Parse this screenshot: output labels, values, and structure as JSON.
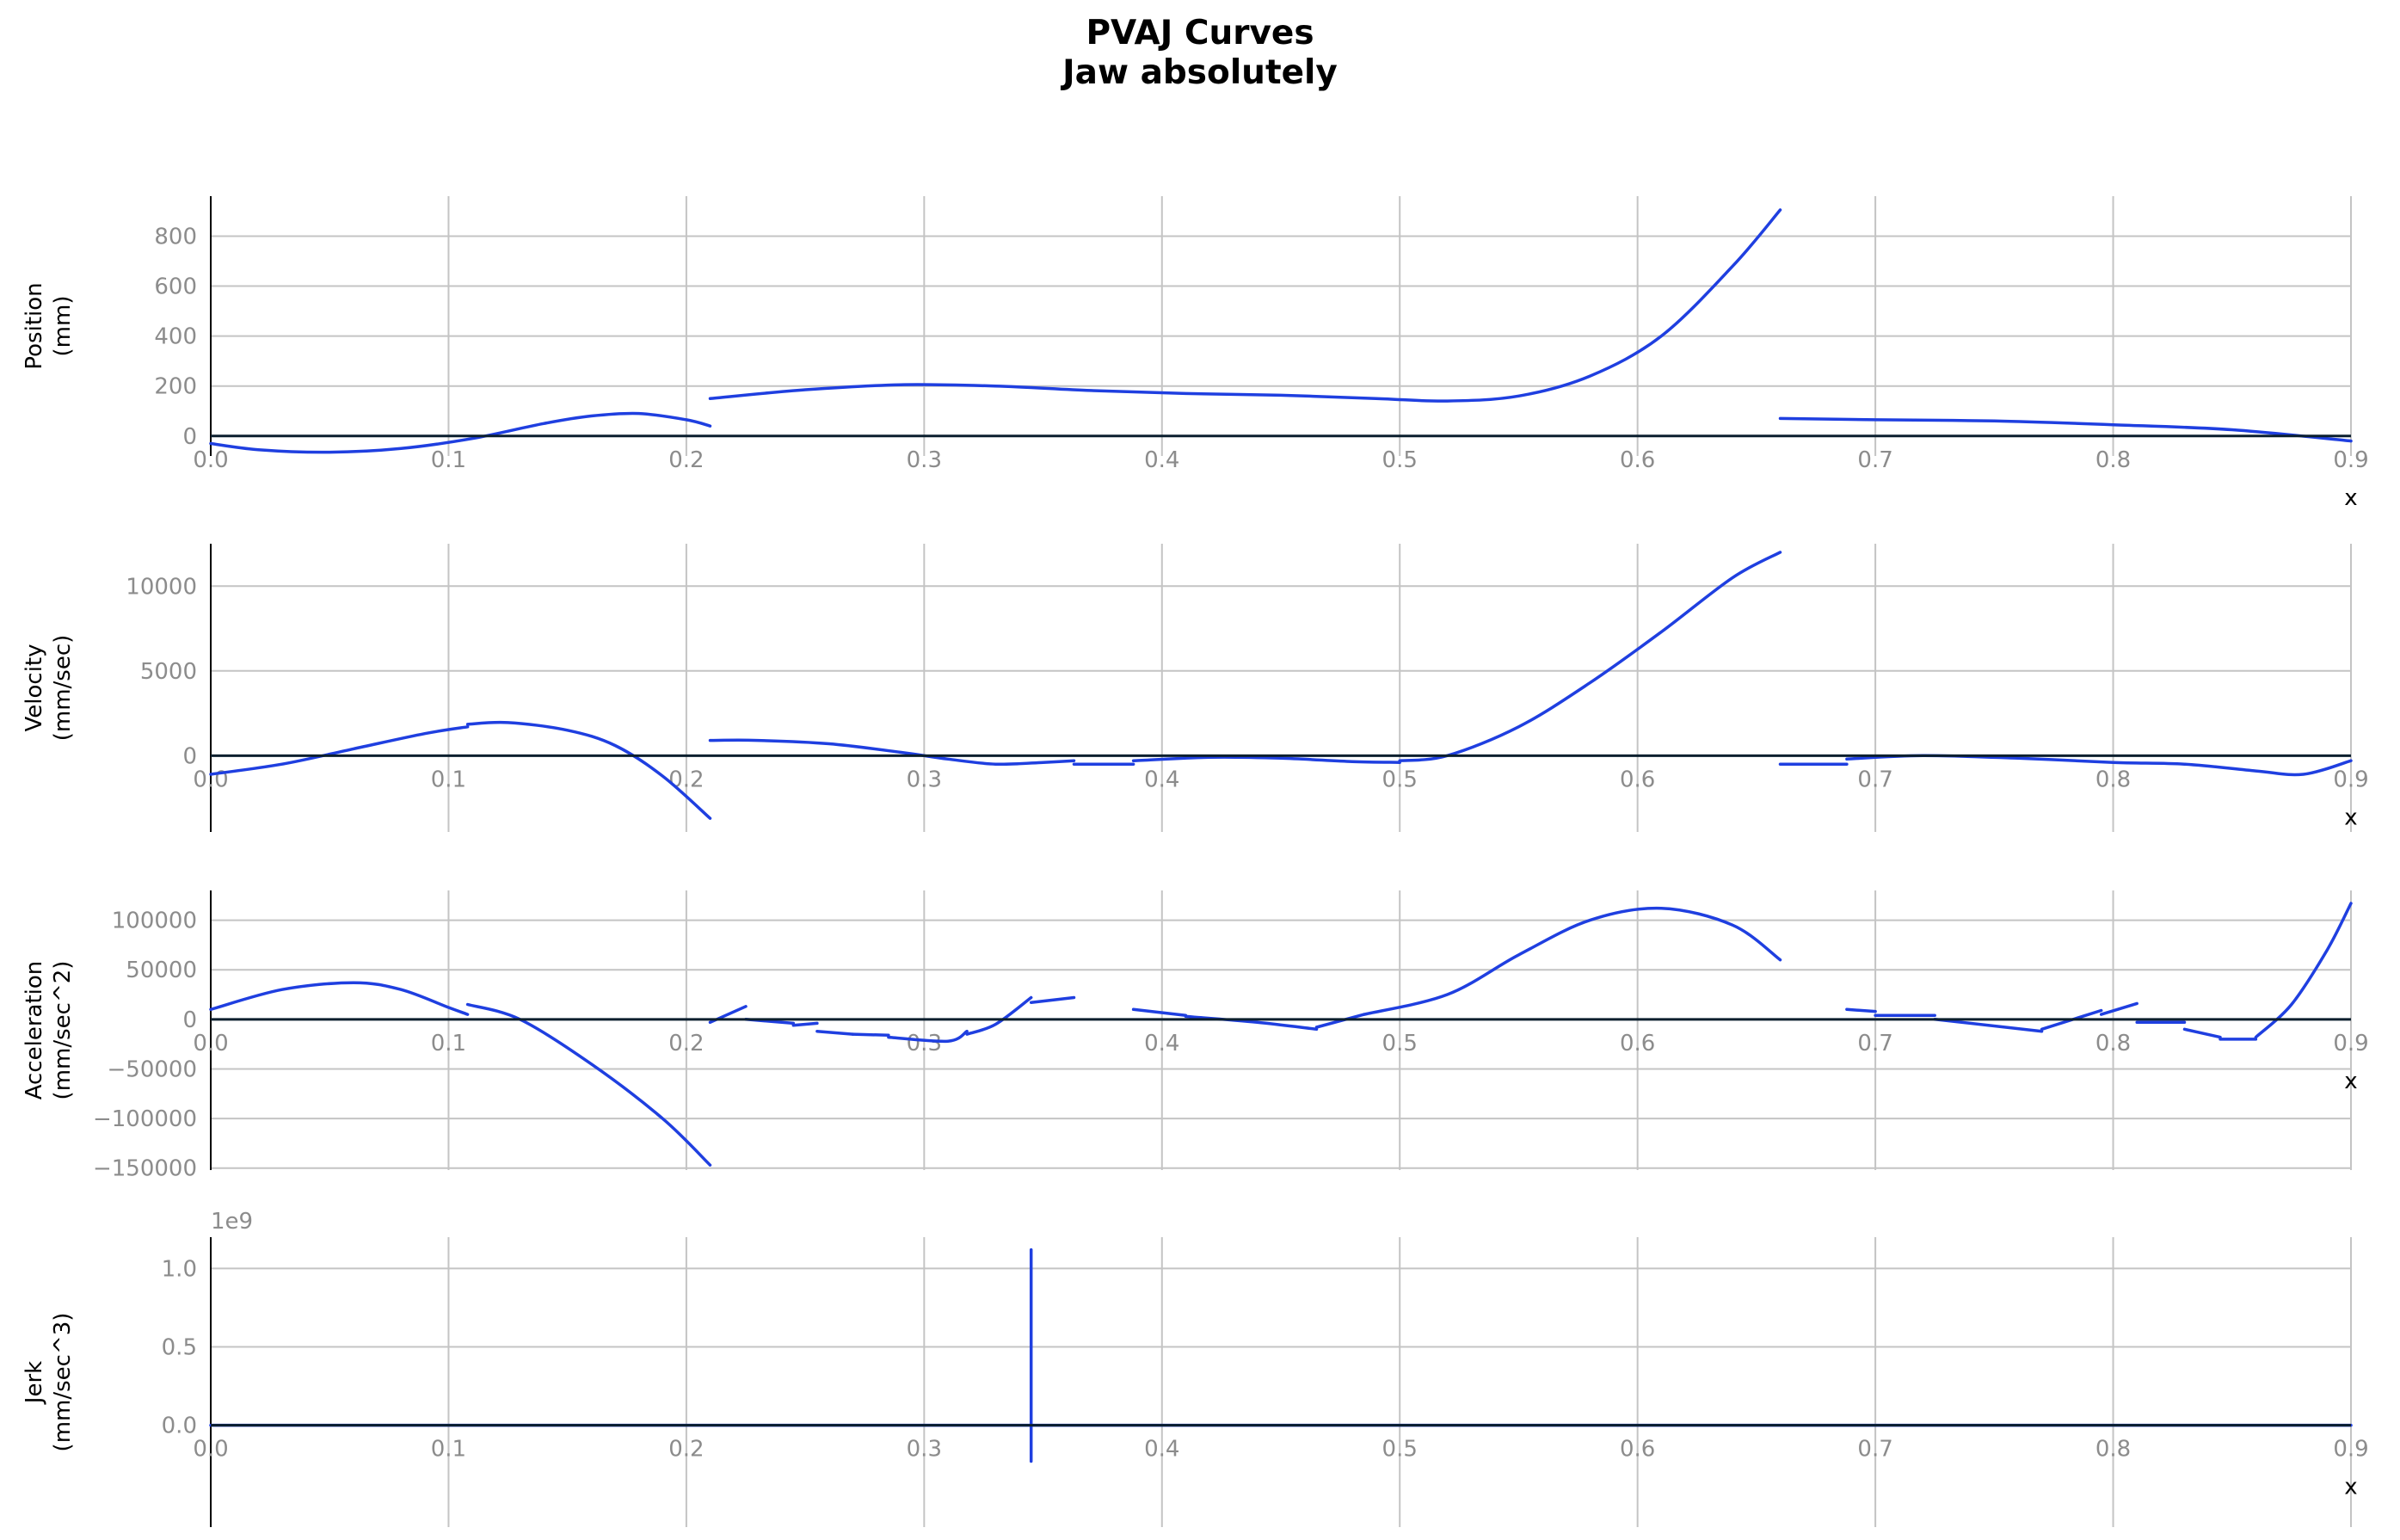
{
  "figure": {
    "title_line1": "PVAJ Curves",
    "title_line2": "Jaw absolutely"
  },
  "colors": {
    "curve": "#1f3fe0",
    "zero_line": "#0b1f2e",
    "grid": "#c4c4c4",
    "tick_label": "#8c8c8c",
    "axis_text": "#000000"
  },
  "chart_data": [
    {
      "type": "line",
      "ylabel": [
        "Position",
        "(mm)"
      ],
      "xlabel": "x",
      "xlim": [
        0,
        0.9
      ],
      "ylim": [
        -80,
        960
      ],
      "x_ticks": [
        0.0,
        0.1,
        0.2,
        0.3,
        0.4,
        0.5,
        0.6,
        0.7,
        0.8,
        0.9
      ],
      "x_tick_labels": [
        "0.0",
        "0.1",
        "0.2",
        "0.3",
        "0.4",
        "0.5",
        "0.6",
        "0.7",
        "0.8",
        "0.9"
      ],
      "y_ticks": [
        0,
        200,
        400,
        600,
        800
      ],
      "y_tick_labels": [
        "0",
        "200",
        "400",
        "600",
        "800"
      ],
      "offset_text": "",
      "grid": true,
      "segments": [
        {
          "x": [
            0.0,
            0.02,
            0.05,
            0.08,
            0.11,
            0.14,
            0.16,
            0.18,
            0.2,
            0.21
          ],
          "y": [
            -30,
            -55,
            -65,
            -50,
            -10,
            50,
            80,
            90,
            65,
            40
          ]
        },
        {
          "x": [
            0.21,
            0.25,
            0.29,
            0.33,
            0.37,
            0.41,
            0.45,
            0.49,
            0.52,
            0.55,
            0.58,
            0.61,
            0.64,
            0.66
          ],
          "y": [
            150,
            185,
            205,
            200,
            182,
            170,
            163,
            150,
            140,
            160,
            240,
            400,
            680,
            905
          ]
        },
        {
          "x": [
            0.66,
            0.7,
            0.75,
            0.8,
            0.85,
            0.9
          ],
          "y": [
            70,
            65,
            60,
            45,
            25,
            -20
          ]
        }
      ]
    },
    {
      "type": "line",
      "ylabel": [
        "Velocity",
        "(mm/sec)"
      ],
      "xlabel": "x",
      "xlim": [
        0,
        0.9
      ],
      "ylim": [
        -4500,
        12500
      ],
      "x_ticks": [
        0.0,
        0.1,
        0.2,
        0.3,
        0.4,
        0.5,
        0.6,
        0.7,
        0.8,
        0.9
      ],
      "x_tick_labels": [
        "0.0",
        "0.1",
        "0.2",
        "0.3",
        "0.4",
        "0.5",
        "0.6",
        "0.7",
        "0.8",
        "0.9"
      ],
      "y_ticks": [
        0,
        5000,
        10000
      ],
      "y_tick_labels": [
        "0",
        "5000",
        "10000"
      ],
      "offset_text": "",
      "grid": true,
      "segments": [
        {
          "x": [
            0.0,
            0.03,
            0.06,
            0.09,
            0.108
          ],
          "y": [
            -1100,
            -500,
            400,
            1300,
            1700
          ]
        },
        {
          "x": [
            0.108,
            0.125,
            0.15,
            0.17,
            0.19,
            0.21
          ],
          "y": [
            1850,
            1950,
            1500,
            600,
            -1200,
            -3700
          ]
        },
        {
          "x": [
            0.21,
            0.23,
            0.26,
            0.29,
            0.31,
            0.33,
            0.35,
            0.363
          ],
          "y": [
            900,
            900,
            700,
            200,
            -200,
            -500,
            -400,
            -300
          ]
        },
        {
          "x": [
            0.363,
            0.388
          ],
          "y": [
            -500,
            -500
          ]
        },
        {
          "x": [
            0.388,
            0.42,
            0.45,
            0.48,
            0.5
          ],
          "y": [
            -300,
            -100,
            -150,
            -350,
            -400
          ]
        },
        {
          "x": [
            0.5,
            0.52,
            0.55,
            0.58,
            0.61,
            0.64,
            0.66
          ],
          "y": [
            -300,
            0,
            1700,
            4300,
            7300,
            10500,
            12000
          ]
        },
        {
          "x": [
            0.66,
            0.688
          ],
          "y": [
            -500,
            -500
          ]
        },
        {
          "x": [
            0.688,
            0.72,
            0.76,
            0.8,
            0.83,
            0.86,
            0.88,
            0.9
          ],
          "y": [
            -200,
            0,
            -150,
            -400,
            -500,
            -900,
            -1100,
            -300
          ]
        }
      ]
    },
    {
      "type": "line",
      "ylabel": [
        "Acceleration",
        "(mm/sec^2)"
      ],
      "xlabel": "x",
      "xlim": [
        0,
        0.9
      ],
      "ylim": [
        -152000,
        130000
      ],
      "x_ticks": [
        0.0,
        0.1,
        0.2,
        0.3,
        0.4,
        0.5,
        0.6,
        0.7,
        0.8,
        0.9
      ],
      "x_tick_labels": [
        "0.0",
        "0.1",
        "0.2",
        "0.3",
        "0.4",
        "0.5",
        "0.6",
        "0.7",
        "0.8",
        "0.9"
      ],
      "y_ticks": [
        -150000,
        -100000,
        -50000,
        0,
        50000,
        100000
      ],
      "y_tick_labels": [
        "−150000",
        "−100000",
        "−50000",
        "0",
        "50000",
        "100000"
      ],
      "offset_text": "",
      "grid": true,
      "segments": [
        {
          "x": [
            0.0,
            0.03,
            0.06,
            0.08,
            0.1,
            0.108
          ],
          "y": [
            10000,
            30000,
            37000,
            30000,
            12000,
            5000
          ]
        },
        {
          "x": [
            0.108,
            0.13,
            0.16,
            0.19,
            0.21
          ],
          "y": [
            15000,
            0,
            -45000,
            -100000,
            -147000
          ]
        },
        {
          "x": [
            0.21,
            0.225
          ],
          "y": [
            -3000,
            13000
          ]
        },
        {
          "x": [
            0.225,
            0.245
          ],
          "y": [
            0,
            -4000
          ]
        },
        {
          "x": [
            0.245,
            0.255
          ],
          "y": [
            -6000,
            -4000
          ]
        },
        {
          "x": [
            0.255,
            0.27
          ],
          "y": [
            -12000,
            -15000
          ]
        },
        {
          "x": [
            0.27,
            0.285
          ],
          "y": [
            -15000,
            -16000
          ]
        },
        {
          "x": [
            0.285,
            0.31,
            0.318
          ],
          "y": [
            -18000,
            -22000,
            -12000
          ]
        },
        {
          "x": [
            0.318,
            0.33,
            0.345
          ],
          "y": [
            -15000,
            -5000,
            22000
          ]
        },
        {
          "x": [
            0.345,
            0.363
          ],
          "y": [
            17000,
            22000
          ]
        },
        {
          "x": [
            0.388,
            0.41
          ],
          "y": [
            10000,
            4000
          ]
        },
        {
          "x": [
            0.41,
            0.44,
            0.465
          ],
          "y": [
            3000,
            -3000,
            -10000
          ]
        },
        {
          "x": [
            0.465,
            0.485
          ],
          "y": [
            -8000,
            5000
          ]
        },
        {
          "x": [
            0.485,
            0.52,
            0.55,
            0.58,
            0.61,
            0.64,
            0.66
          ],
          "y": [
            5000,
            25000,
            65000,
            100000,
            112000,
            95000,
            60000
          ]
        },
        {
          "x": [
            0.688,
            0.7
          ],
          "y": [
            10000,
            8000
          ]
        },
        {
          "x": [
            0.7,
            0.725
          ],
          "y": [
            4000,
            4000
          ]
        },
        {
          "x": [
            0.725,
            0.77
          ],
          "y": [
            0,
            -12000
          ]
        },
        {
          "x": [
            0.77,
            0.795
          ],
          "y": [
            -10000,
            9000
          ]
        },
        {
          "x": [
            0.795,
            0.81
          ],
          "y": [
            5000,
            16000
          ]
        },
        {
          "x": [
            0.81,
            0.83
          ],
          "y": [
            -3000,
            -3000
          ]
        },
        {
          "x": [
            0.83,
            0.845
          ],
          "y": [
            -10000,
            -18000
          ]
        },
        {
          "x": [
            0.845,
            0.86
          ],
          "y": [
            -20000,
            -20000
          ]
        },
        {
          "x": [
            0.86,
            0.875,
            0.89,
            0.9
          ],
          "y": [
            -18000,
            15000,
            70000,
            117000
          ]
        }
      ]
    },
    {
      "type": "line",
      "ylabel": [
        "Jerk",
        "(mm/sec^3)"
      ],
      "xlabel": "x",
      "xlim": [
        0,
        0.9
      ],
      "ylim": [
        -650000000.0,
        1200000000.0
      ],
      "x_ticks": [
        0.0,
        0.1,
        0.2,
        0.3,
        0.4,
        0.5,
        0.6,
        0.7,
        0.8,
        0.9
      ],
      "x_tick_labels": [
        "0.0",
        "0.1",
        "0.2",
        "0.3",
        "0.4",
        "0.5",
        "0.6",
        "0.7",
        "0.8",
        "0.9"
      ],
      "y_ticks": [
        0,
        500000000,
        1000000000
      ],
      "y_tick_labels": [
        "0.0",
        "0.5",
        "1.0"
      ],
      "offset_text": "1e9",
      "grid": true,
      "segments": [
        {
          "x": [
            0.0,
            0.345
          ],
          "y": [
            0,
            0
          ]
        },
        {
          "x": [
            0.345,
            0.345
          ],
          "y": [
            -230000000.0,
            1120000000.0
          ]
        },
        {
          "x": [
            0.345,
            0.9
          ],
          "y": [
            0,
            0
          ]
        }
      ]
    }
  ]
}
